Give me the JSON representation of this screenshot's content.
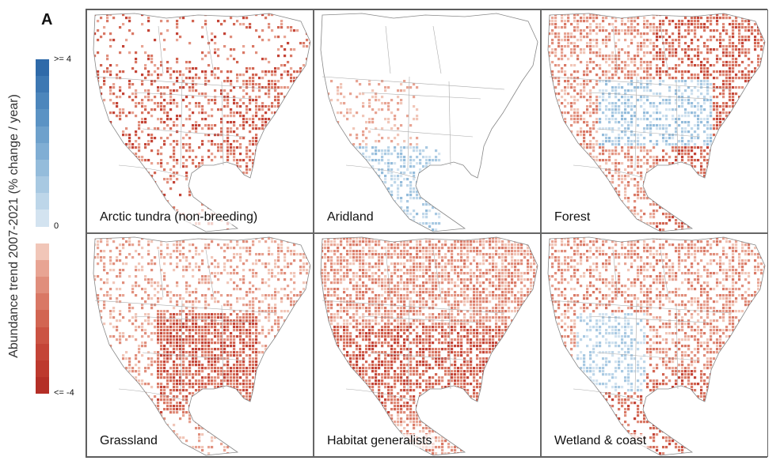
{
  "figure": {
    "panel_letter": "A",
    "legend": {
      "title": "Abundance trend 2007-2021 (% change / year)",
      "max_label": ">= 4",
      "mid_label": "0",
      "min_label": "<= -4",
      "colors": [
        "#2f6aa9",
        "#3d78b3",
        "#4c86bc",
        "#5b93c4",
        "#6ea1cc",
        "#80aed4",
        "#94bcdb",
        "#a8c9e2",
        "#bdd6e9",
        "#d3e3f0",
        "#ffffff",
        "#f1c6b8",
        "#e8a493",
        "#e08e7c",
        "#d97865",
        "#d26552",
        "#cb5343",
        "#c44437",
        "#bd392e",
        "#b42f27"
      ]
    },
    "panels": [
      {
        "label": "Arctic tundra (non-breeding)",
        "pattern": "coastal-red"
      },
      {
        "label": "Aridland",
        "pattern": "southwest-blue"
      },
      {
        "label": "Forest",
        "pattern": "east-red-north-blue"
      },
      {
        "label": "Grassland",
        "pattern": "plains-red"
      },
      {
        "label": "Habitat generalists",
        "pattern": "widespread-red"
      },
      {
        "label": "Wetland & coast",
        "pattern": "mixed-coast"
      }
    ]
  }
}
